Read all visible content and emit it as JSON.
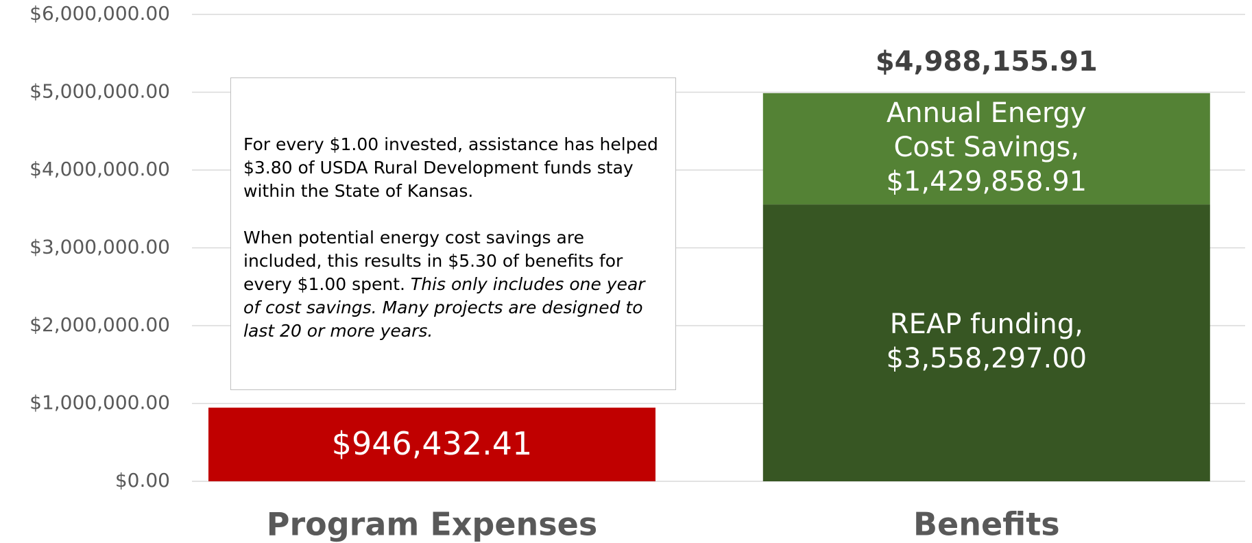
{
  "chart_data": {
    "type": "stacked_bar",
    "categories": [
      "Program Expenses",
      "Benefits"
    ],
    "series": [
      {
        "color": "#c00000",
        "values": [
          946432.41,
          null
        ],
        "value_labels": [
          "$946,432.41",
          null
        ]
      },
      {
        "name": "REAP funding,",
        "color": "#375623",
        "values": [
          null,
          3558297.0
        ],
        "value_labels": [
          null,
          "$3,558,297.00"
        ]
      },
      {
        "name": "Annual Energy Cost Savings,",
        "color": "#548235",
        "values": [
          null,
          1429858.91
        ],
        "value_labels": [
          null,
          "$1,429,858.91"
        ]
      }
    ],
    "totals": [
      null,
      4988155.91
    ],
    "total_labels": [
      null,
      "$4,988,155.91"
    ],
    "ylim": [
      0,
      6000000
    ],
    "yticks": [
      {
        "value": 0,
        "label": "$0.00"
      },
      {
        "value": 1000000,
        "label": "$1,000,000.00"
      },
      {
        "value": 2000000,
        "label": "$2,000,000.00"
      },
      {
        "value": 3000000,
        "label": "$3,000,000.00"
      },
      {
        "value": 4000000,
        "label": "$4,000,000.00"
      },
      {
        "value": 5000000,
        "label": "$5,000,000.00"
      },
      {
        "value": 6000000,
        "label": "$6,000,000.00"
      }
    ],
    "grid": true,
    "annotation": {
      "paragraph1": "For every $1.00 invested, assistance has helped $3.80 of USDA Rural Development funds stay within the State of Kansas.",
      "paragraph2": "When potential energy cost savings are included, this results in $5.30 of benefits for every $1.00 spent.",
      "paragraph2_italic": "This only includes one year of cost savings. Many projects are designed to last 20 or more years."
    }
  }
}
